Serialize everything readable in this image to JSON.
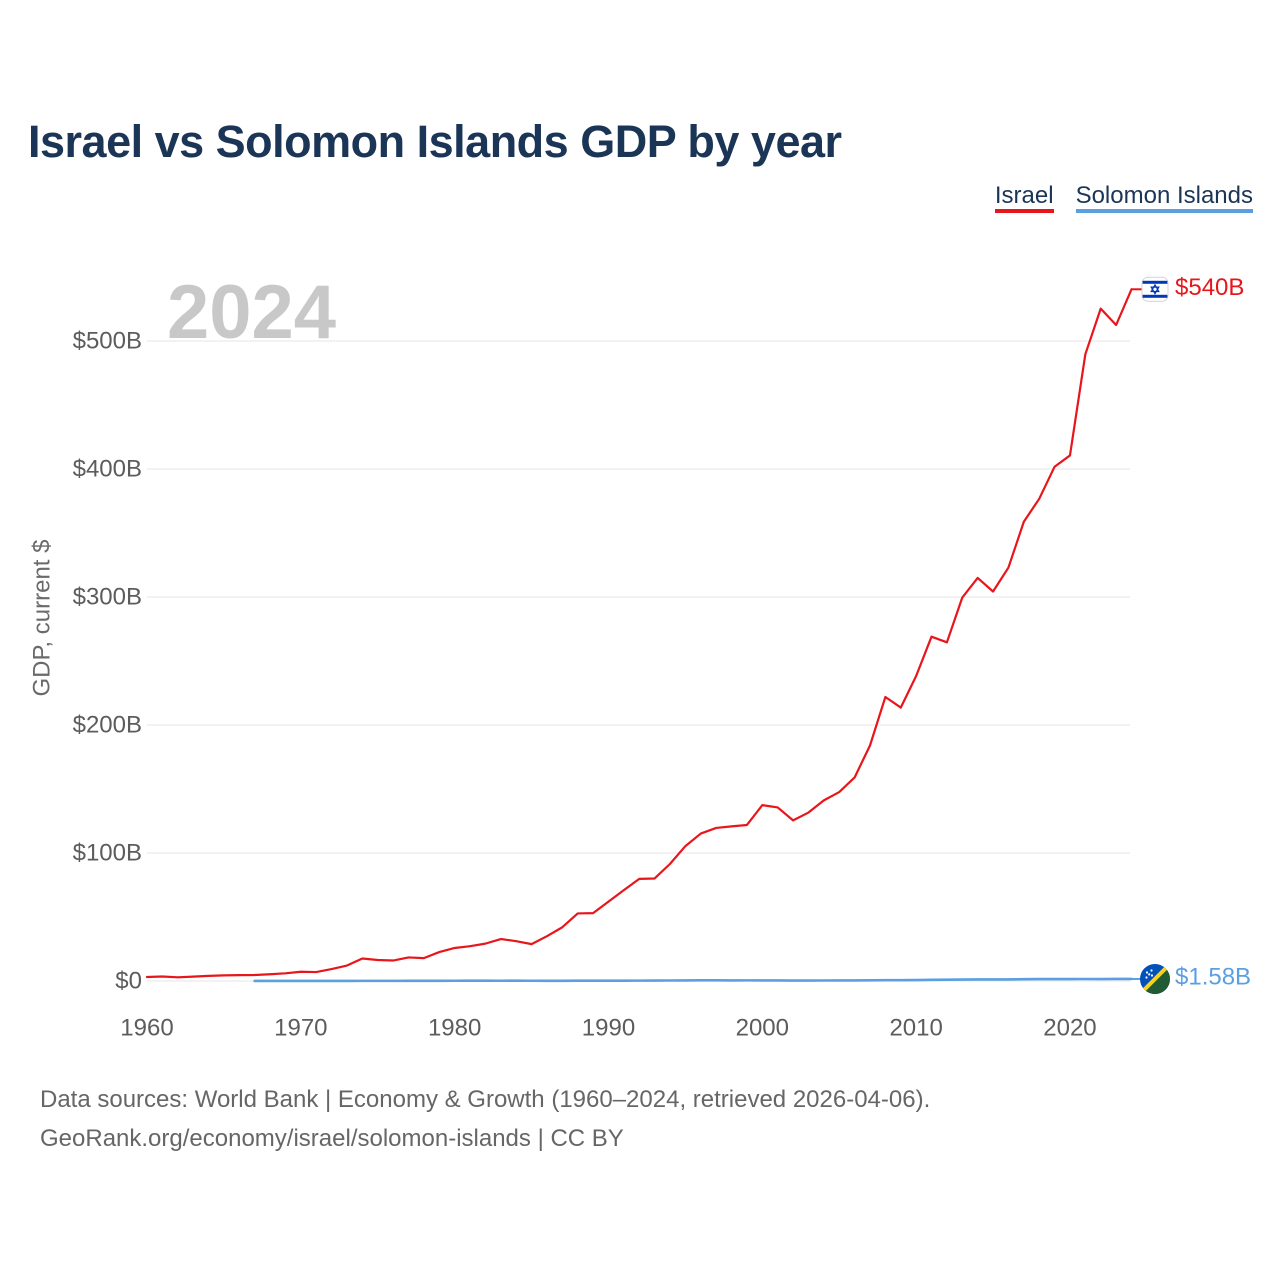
{
  "colors": {
    "title": "#1b3557",
    "gridline": "#e6e6e6",
    "axis_text": "#5c5c5c",
    "year_label": "#c8c8c8"
  },
  "chart_data": {
    "type": "line",
    "title": "Israel vs Solomon Islands GDP by year",
    "ylabel": "GDP, current $",
    "xlim": [
      1960,
      2024
    ],
    "ylim": [
      0,
      540
    ],
    "x_ticks": [
      1960,
      1970,
      1980,
      1990,
      2000,
      2010,
      2020
    ],
    "x_tick_labels": [
      "1960",
      "1970",
      "1980",
      "1990",
      "2000",
      "2010",
      "2020"
    ],
    "y_ticks": [
      0,
      100,
      200,
      300,
      400,
      500
    ],
    "y_tick_labels": [
      "$0",
      "$100B",
      "$200B",
      "$300B",
      "$400B",
      "$500B"
    ],
    "grid": true,
    "legend_position": "top-right",
    "annotations": [
      {
        "text": "2024"
      }
    ],
    "series": [
      {
        "name": "Israel",
        "color": "#e8161b",
        "flag_icon": "israel-flag-icon",
        "end_label": "$540B",
        "x": [
          1960,
          1961,
          1962,
          1963,
          1964,
          1965,
          1966,
          1967,
          1968,
          1969,
          1970,
          1971,
          1972,
          1973,
          1974,
          1975,
          1976,
          1977,
          1978,
          1979,
          1980,
          1981,
          1982,
          1983,
          1984,
          1985,
          1986,
          1987,
          1988,
          1989,
          1990,
          1991,
          1992,
          1993,
          1994,
          1995,
          1996,
          1997,
          1998,
          1999,
          2000,
          2001,
          2002,
          2003,
          2004,
          2005,
          2006,
          2007,
          2008,
          2009,
          2010,
          2011,
          2012,
          2013,
          2014,
          2015,
          2016,
          2017,
          2018,
          2019,
          2020,
          2021,
          2022,
          2023,
          2024
        ],
        "values": [
          3.1,
          3.5,
          2.9,
          3.4,
          4.0,
          4.4,
          4.6,
          4.7,
          5.3,
          6.0,
          7.2,
          7.0,
          9.3,
          12.1,
          17.6,
          16.4,
          16.0,
          18.4,
          17.9,
          22.6,
          25.8,
          27.2,
          29.2,
          32.8,
          31.1,
          28.8,
          35.0,
          42.0,
          52.8,
          53.0,
          62.0,
          71.0,
          79.8,
          80.1,
          91.5,
          105.4,
          115.2,
          119.6,
          120.8,
          121.9,
          137.4,
          135.6,
          125.5,
          131.6,
          141.1,
          147.6,
          159.0,
          184.0,
          221.9,
          213.6,
          238.3,
          269.0,
          264.6,
          299.6,
          314.9,
          304.3,
          323.0,
          358.8,
          376.7,
          401.8,
          410.6,
          489.7,
          525.3,
          512.5,
          540.4
        ]
      },
      {
        "name": "Solomon Islands",
        "color": "#5b9fe1",
        "flag_icon": "solomon-islands-flag-icon",
        "end_label": "$1.58B",
        "x": [
          1967,
          1968,
          1969,
          1970,
          1971,
          1972,
          1973,
          1974,
          1975,
          1976,
          1977,
          1978,
          1979,
          1980,
          1981,
          1982,
          1983,
          1984,
          1985,
          1986,
          1987,
          1988,
          1989,
          1990,
          1991,
          1992,
          1993,
          1994,
          1995,
          1996,
          1997,
          1998,
          1999,
          2000,
          2001,
          2002,
          2003,
          2004,
          2005,
          2006,
          2007,
          2008,
          2009,
          2010,
          2011,
          2012,
          2013,
          2014,
          2015,
          2016,
          2017,
          2018,
          2019,
          2020,
          2021,
          2022,
          2023,
          2024
        ],
        "values": [
          0.03,
          0.03,
          0.03,
          0.04,
          0.05,
          0.05,
          0.06,
          0.09,
          0.09,
          0.1,
          0.12,
          0.14,
          0.18,
          0.19,
          0.22,
          0.21,
          0.2,
          0.23,
          0.2,
          0.17,
          0.18,
          0.22,
          0.23,
          0.24,
          0.27,
          0.3,
          0.34,
          0.4,
          0.44,
          0.5,
          0.52,
          0.46,
          0.49,
          0.45,
          0.42,
          0.35,
          0.34,
          0.38,
          0.42,
          0.47,
          0.54,
          0.61,
          0.6,
          0.73,
          0.94,
          1.06,
          1.13,
          1.19,
          1.21,
          1.25,
          1.38,
          1.48,
          1.53,
          1.49,
          1.57,
          1.55,
          1.62,
          1.58
        ]
      }
    ]
  },
  "source": {
    "line1": "Data sources: World Bank | Economy & Growth (1960–2024, retrieved 2026-04-06).",
    "line2": "GeoRank.org/economy/israel/solomon-islands | CC BY"
  }
}
